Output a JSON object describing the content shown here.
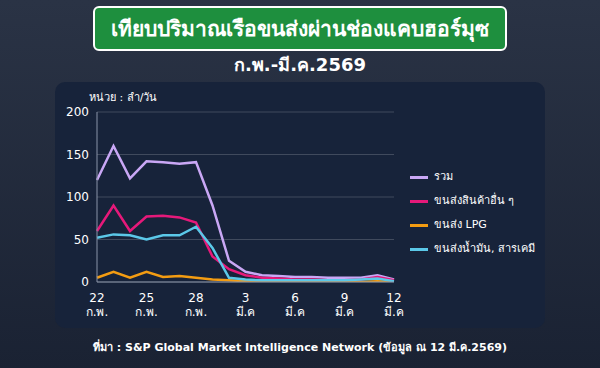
{
  "chart_data": {
    "type": "line",
    "title": "เทียบปริมาณเรือขนส่งผ่านช่องแคบฮอร์มุซ",
    "subtitle": "ก.พ.-มี.ค.2569",
    "y_label": "หน่วย : ลำ/วัน",
    "source": "ที่มา : S&P Global Market Intelligence Network (ข้อมูล ณ 12 มี.ค.2569)",
    "categories": [
      "22 ก.พ.",
      null,
      null,
      "25 ก.พ.",
      null,
      null,
      "28 ก.พ.",
      null,
      null,
      "3 มี.ค",
      null,
      null,
      "6 มี.ค",
      null,
      null,
      "9 มี.ค",
      null,
      null,
      "12 มี.ค"
    ],
    "series": [
      {
        "name": "รวม",
        "color": "#c9a7f5",
        "values": [
          120,
          160,
          122,
          142,
          141,
          139,
          141,
          90,
          25,
          12,
          8,
          7,
          6,
          6,
          5,
          5,
          5,
          8,
          3
        ]
      },
      {
        "name": "ขนส่งสินค้าอื่น ๆ",
        "color": "#e6197a",
        "values": [
          60,
          90,
          60,
          77,
          78,
          76,
          70,
          30,
          15,
          8,
          5,
          4,
          3,
          3,
          2,
          2,
          3,
          6,
          2
        ]
      },
      {
        "name": "ขนส่ง LPG",
        "color": "#f39c12",
        "values": [
          5,
          12,
          5,
          12,
          6,
          7,
          5,
          3,
          2,
          1,
          1,
          1,
          0,
          0,
          0,
          0,
          0,
          1,
          0
        ]
      },
      {
        "name": "ขนส่งน้ำมัน, สารเคมี",
        "color": "#5bc8e8",
        "values": [
          52,
          56,
          55,
          50,
          55,
          55,
          65,
          40,
          5,
          3,
          2,
          2,
          2,
          2,
          2,
          2,
          3,
          4,
          1
        ]
      }
    ],
    "ylim": [
      0,
      200
    ],
    "yticks": [
      0,
      50,
      100,
      150,
      200
    ],
    "grid": true,
    "legend": "right"
  }
}
